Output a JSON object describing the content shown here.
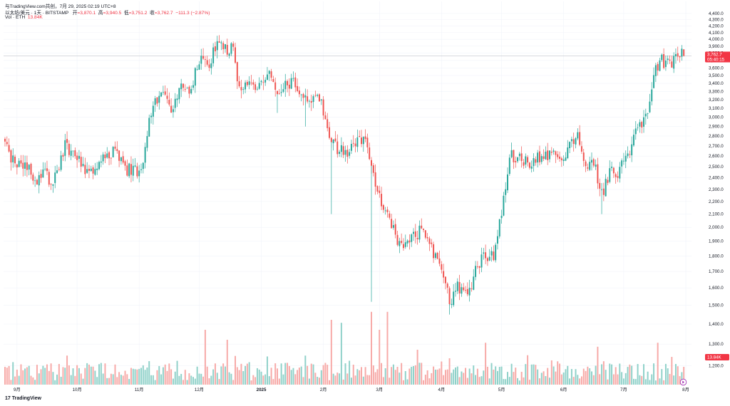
{
  "header": {
    "source_line": "与TradingView.com共创，7月 29, 2025 02:19 UTC+8",
    "symbol": "以太坊/美元 · 1天 · BITSTAMP",
    "open_label": "开",
    "open_value": "=3,870.1",
    "high_label": "高",
    "high_value": "=3,940.5",
    "low_label": "低",
    "low_value": "=3,751.2",
    "close_label": "收",
    "close_value": "=3,762.7",
    "change": "−111.3 (−2.87%)",
    "vol_label": "Vol · ETH",
    "vol_value": "13.84K"
  },
  "footer": {
    "logo": "17",
    "brand": "TradingView"
  },
  "price_tag": {
    "price": "3,762.7",
    "countdown": "05:40:15"
  },
  "volume_tag": "13.84K",
  "colors": {
    "up": "#26a69a",
    "down": "#ef5350",
    "up_vol": "#8fd1c9",
    "down_vol": "#f7a9a7",
    "grid": "#f0f3fa",
    "tag": "#f23645"
  },
  "chart_data": {
    "type": "candlestick",
    "symbol": "以太坊/美元 · 1天 · BITSTAMP",
    "y_scale": "log",
    "ylim": [
      1120,
      4480
    ],
    "yticks": [
      4400,
      4300,
      4200,
      4100,
      4000,
      3900,
      3800,
      3700,
      3600,
      3500,
      3400,
      3300,
      3200,
      3100,
      3000,
      2900,
      2800,
      2700,
      2600,
      2500,
      2400,
      2300,
      2200,
      2100,
      2000,
      1900,
      1800,
      1700,
      1600,
      1500,
      1400,
      1300,
      1200
    ],
    "ytick_labels": [
      "4,400.0",
      "4,300.0",
      "4,200.0",
      "4,100.0",
      "4,000.0",
      "3,900.0",
      "3,800.0",
      "3,700.0",
      "3,600.0",
      "3,500.0",
      "3,400.0",
      "3,300.0",
      "3,200.0",
      "3,100.0",
      "3,000.0",
      "2,900.0",
      "2,800.0",
      "2,700.0",
      "2,600.0",
      "2,500.0",
      "2,400.0",
      "2,300.0",
      "2,200.0",
      "2,100.0",
      "2,000.0",
      "1,900.0",
      "1,800.0",
      "1,700.0",
      "1,600.0",
      "1,500.0",
      "1,400.0",
      "1,300.0",
      "1,200.0"
    ],
    "xticks": [
      {
        "label": "9月",
        "day": 6
      },
      {
        "label": "10月",
        "day": 36
      },
      {
        "label": "11月",
        "day": 67
      },
      {
        "label": "12月",
        "day": 97
      },
      {
        "label": "2025",
        "day": 128
      },
      {
        "label": "2月",
        "day": 159
      },
      {
        "label": "3月",
        "day": 187
      },
      {
        "label": "4月",
        "day": 218
      },
      {
        "label": "5月",
        "day": 248
      },
      {
        "label": "6月",
        "day": 279
      },
      {
        "label": "7月",
        "day": 309
      },
      {
        "label": "8月",
        "day": 340
      }
    ],
    "grid": true,
    "last_price": 3762.7,
    "close_path_anchors": [
      [
        0,
        2750
      ],
      [
        5,
        2500
      ],
      [
        12,
        2480
      ],
      [
        14,
        2350
      ],
      [
        20,
        2450
      ],
      [
        24,
        2350
      ],
      [
        30,
        2700
      ],
      [
        36,
        2580
      ],
      [
        40,
        2430
      ],
      [
        44,
        2450
      ],
      [
        50,
        2600
      ],
      [
        56,
        2650
      ],
      [
        60,
        2480
      ],
      [
        68,
        2450
      ],
      [
        72,
        3000
      ],
      [
        78,
        3300
      ],
      [
        82,
        3180
      ],
      [
        84,
        3080
      ],
      [
        88,
        3400
      ],
      [
        92,
        3300
      ],
      [
        96,
        3600
      ],
      [
        100,
        3800
      ],
      [
        102,
        3650
      ],
      [
        106,
        3950
      ],
      [
        110,
        3880
      ],
      [
        114,
        3850
      ],
      [
        117,
        3300
      ],
      [
        122,
        3400
      ],
      [
        126,
        3350
      ],
      [
        132,
        3550
      ],
      [
        136,
        3200
      ],
      [
        140,
        3350
      ],
      [
        144,
        3450
      ],
      [
        148,
        3200
      ],
      [
        152,
        3200
      ],
      [
        156,
        3300
      ],
      [
        160,
        3000
      ],
      [
        164,
        2700
      ],
      [
        170,
        2630
      ],
      [
        174,
        2750
      ],
      [
        180,
        2750
      ],
      [
        184,
        2400
      ],
      [
        188,
        2200
      ],
      [
        192,
        2050
      ],
      [
        196,
        1900
      ],
      [
        200,
        1850
      ],
      [
        204,
        1920
      ],
      [
        208,
        2000
      ],
      [
        212,
        1850
      ],
      [
        216,
        1800
      ],
      [
        222,
        1520
      ],
      [
        226,
        1600
      ],
      [
        232,
        1580
      ],
      [
        236,
        1750
      ],
      [
        240,
        1790
      ],
      [
        244,
        1800
      ],
      [
        248,
        2100
      ],
      [
        252,
        2600
      ],
      [
        256,
        2580
      ],
      [
        262,
        2550
      ],
      [
        266,
        2600
      ],
      [
        270,
        2620
      ],
      [
        274,
        2620
      ],
      [
        278,
        2500
      ],
      [
        282,
        2700
      ],
      [
        286,
        2800
      ],
      [
        290,
        2500
      ],
      [
        294,
        2550
      ],
      [
        298,
        2250
      ],
      [
        302,
        2450
      ],
      [
        306,
        2450
      ],
      [
        312,
        2650
      ],
      [
        316,
        2900
      ],
      [
        320,
        3000
      ],
      [
        324,
        3500
      ],
      [
        328,
        3700
      ],
      [
        332,
        3650
      ],
      [
        336,
        3750
      ],
      [
        338,
        3870
      ],
      [
        339,
        3762.7
      ]
    ],
    "volume_unit": "ETH",
    "last_volume": "13.84K",
    "volume_spikes": [
      {
        "day": 100,
        "value": 0.55
      },
      {
        "day": 111,
        "value": 0.45
      },
      {
        "day": 163,
        "value": 0.65
      },
      {
        "day": 168,
        "value": 0.62
      },
      {
        "day": 183,
        "value": 0.73
      },
      {
        "day": 187,
        "value": 0.55
      },
      {
        "day": 191,
        "value": 0.73
      },
      {
        "day": 240,
        "value": 0.42
      },
      {
        "day": 326,
        "value": 0.42
      },
      {
        "day": 296,
        "value": 0.38
      },
      {
        "day": 206,
        "value": 0.35
      }
    ]
  }
}
